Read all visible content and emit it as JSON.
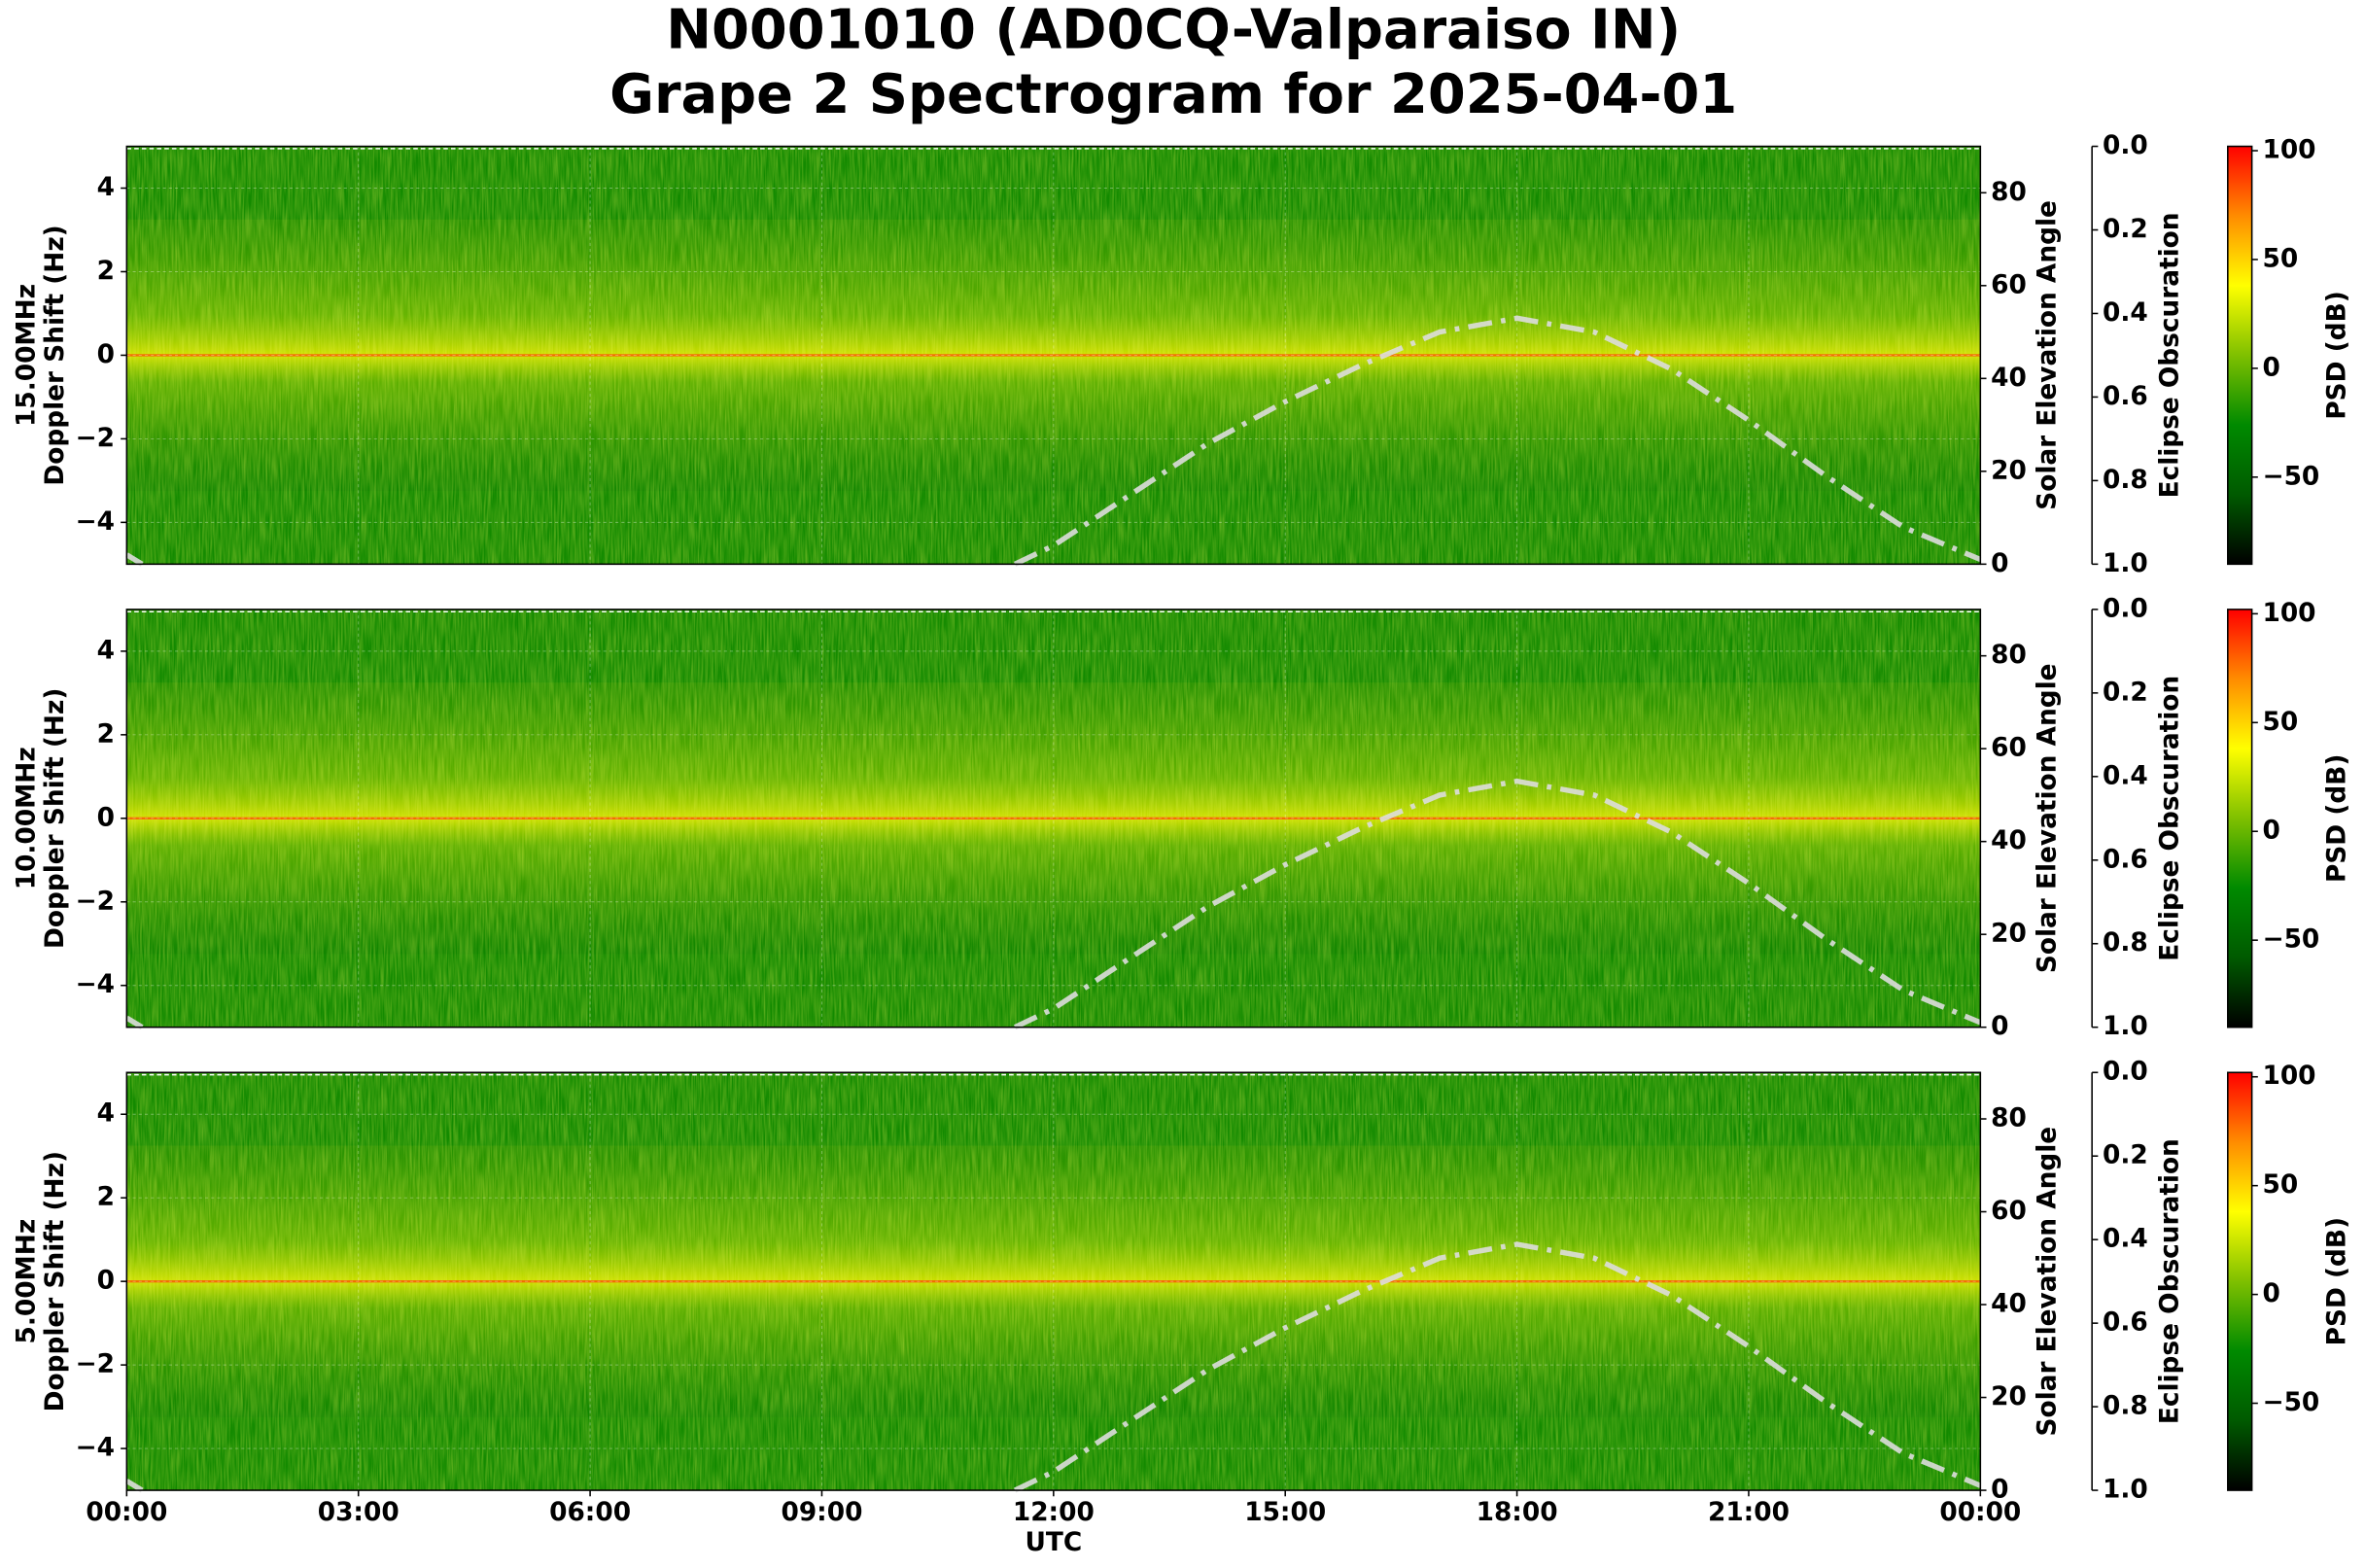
{
  "chart_data": [
    {
      "type": "spectrogram",
      "title": "N0001010 (AD0CQ-Valparaiso IN)",
      "subtitle": "Grape 2 Spectrogram for 2025-04-01",
      "ylabel": [
        "15.00MHz",
        "Doppler Shift (Hz)"
      ],
      "ylim": [
        -5,
        5
      ],
      "yticks": [
        {
          "value": -4,
          "label": "−4"
        },
        {
          "value": -2,
          "label": "−2"
        },
        0,
        2,
        4
      ],
      "xlim": [
        0,
        24
      ],
      "grid": true,
      "y2label": "Solar Elevation Angle",
      "y2lim": [
        0,
        90
      ],
      "y2ticks": [
        0,
        20,
        40,
        60,
        80
      ],
      "y3label": "Eclipse Obscuration",
      "y3lim": [
        1.0,
        0.0
      ],
      "y3ticks": [
        {
          "value": 0.0,
          "label": "0.0"
        },
        {
          "value": 0.2,
          "label": "0.2"
        },
        {
          "value": 0.4,
          "label": "0.4"
        },
        {
          "value": 0.6,
          "label": "0.6"
        },
        {
          "value": 0.8,
          "label": "0.8"
        },
        {
          "value": 1.0,
          "label": "1.0"
        }
      ],
      "colorbar_label": "PSD (dB)",
      "clim": [
        -90,
        102
      ],
      "cticks": [
        {
          "value": -50,
          "label": "−50"
        },
        0,
        50,
        100
      ],
      "colormap": [
        "#000000",
        "#005a00",
        "#008a00",
        "#7fc000",
        "#ffff00",
        "#ff8c00",
        "#ff0000"
      ],
      "series": [
        {
          "color": "#dddddd",
          "axis": "y2",
          "x": [
            0,
            0.2,
            6,
            11.5,
            12,
            13,
            14,
            15,
            16,
            17,
            18,
            19,
            20,
            21,
            22,
            23,
            24
          ],
          "values": [
            2,
            0,
            null,
            0,
            4,
            15,
            26,
            35,
            43,
            50,
            53,
            50,
            42,
            31,
            19,
            8,
            1
          ]
        }
      ]
    },
    {
      "type": "spectrogram",
      "ylabel": [
        "10.00MHz",
        "Doppler Shift (Hz)"
      ],
      "ylim": [
        -5,
        5
      ],
      "yticks": [
        {
          "value": -4,
          "label": "−4"
        },
        {
          "value": -2,
          "label": "−2"
        },
        0,
        2,
        4
      ],
      "xlim": [
        0,
        24
      ],
      "grid": true,
      "y2label": "Solar Elevation Angle",
      "y2lim": [
        0,
        90
      ],
      "y2ticks": [
        0,
        20,
        40,
        60,
        80
      ],
      "y3label": "Eclipse Obscuration",
      "y3lim": [
        1.0,
        0.0
      ],
      "y3ticks": [
        {
          "value": 0.0,
          "label": "0.0"
        },
        {
          "value": 0.2,
          "label": "0.2"
        },
        {
          "value": 0.4,
          "label": "0.4"
        },
        {
          "value": 0.6,
          "label": "0.6"
        },
        {
          "value": 0.8,
          "label": "0.8"
        },
        {
          "value": 1.0,
          "label": "1.0"
        }
      ],
      "colorbar_label": "PSD (dB)",
      "clim": [
        -90,
        102
      ],
      "cticks": [
        {
          "value": -50,
          "label": "−50"
        },
        0,
        50,
        100
      ],
      "colormap": [
        "#000000",
        "#005a00",
        "#008a00",
        "#7fc000",
        "#ffff00",
        "#ff8c00",
        "#ff0000"
      ],
      "series": [
        {
          "color": "#dddddd",
          "axis": "y2",
          "x": [
            0,
            0.2,
            6,
            11.5,
            12,
            13,
            14,
            15,
            16,
            17,
            18,
            19,
            20,
            21,
            22,
            23,
            24
          ],
          "values": [
            2,
            0,
            null,
            0,
            4,
            15,
            26,
            35,
            43,
            50,
            53,
            50,
            42,
            31,
            19,
            8,
            1
          ]
        }
      ]
    },
    {
      "type": "spectrogram",
      "ylabel": [
        "5.00MHz",
        "Doppler Shift (Hz)"
      ],
      "ylim": [
        -5,
        5
      ],
      "yticks": [
        {
          "value": -4,
          "label": "−4"
        },
        {
          "value": -2,
          "label": "−2"
        },
        0,
        2,
        4
      ],
      "xlim": [
        0,
        24
      ],
      "grid": true,
      "xlabel": "UTC",
      "xticks": [
        {
          "value": 0,
          "label": "00:00"
        },
        {
          "value": 3,
          "label": "03:00"
        },
        {
          "value": 6,
          "label": "06:00"
        },
        {
          "value": 9,
          "label": "09:00"
        },
        {
          "value": 12,
          "label": "12:00"
        },
        {
          "value": 15,
          "label": "15:00"
        },
        {
          "value": 18,
          "label": "18:00"
        },
        {
          "value": 21,
          "label": "21:00"
        },
        {
          "value": 24,
          "label": "00:00"
        }
      ],
      "y2label": "Solar Elevation Angle",
      "y2lim": [
        0,
        90
      ],
      "y2ticks": [
        0,
        20,
        40,
        60,
        80
      ],
      "y3label": "Eclipse Obscuration",
      "y3lim": [
        1.0,
        0.0
      ],
      "y3ticks": [
        {
          "value": 0.0,
          "label": "0.0"
        },
        {
          "value": 0.2,
          "label": "0.2"
        },
        {
          "value": 0.4,
          "label": "0.4"
        },
        {
          "value": 0.6,
          "label": "0.6"
        },
        {
          "value": 0.8,
          "label": "0.8"
        },
        {
          "value": 1.0,
          "label": "1.0"
        }
      ],
      "colorbar_label": "PSD (dB)",
      "clim": [
        -90,
        102
      ],
      "cticks": [
        {
          "value": -50,
          "label": "−50"
        },
        0,
        50,
        100
      ],
      "colormap": [
        "#000000",
        "#005a00",
        "#008a00",
        "#7fc000",
        "#ffff00",
        "#ff8c00",
        "#ff0000"
      ],
      "series": [
        {
          "color": "#dddddd",
          "axis": "y2",
          "x": [
            0,
            0.2,
            6,
            11.5,
            12,
            13,
            14,
            15,
            16,
            17,
            18,
            19,
            20,
            21,
            22,
            23,
            24
          ],
          "values": [
            2,
            0,
            null,
            0,
            4,
            15,
            26,
            35,
            43,
            50,
            53,
            50,
            42,
            31,
            19,
            8,
            1
          ]
        }
      ]
    }
  ]
}
